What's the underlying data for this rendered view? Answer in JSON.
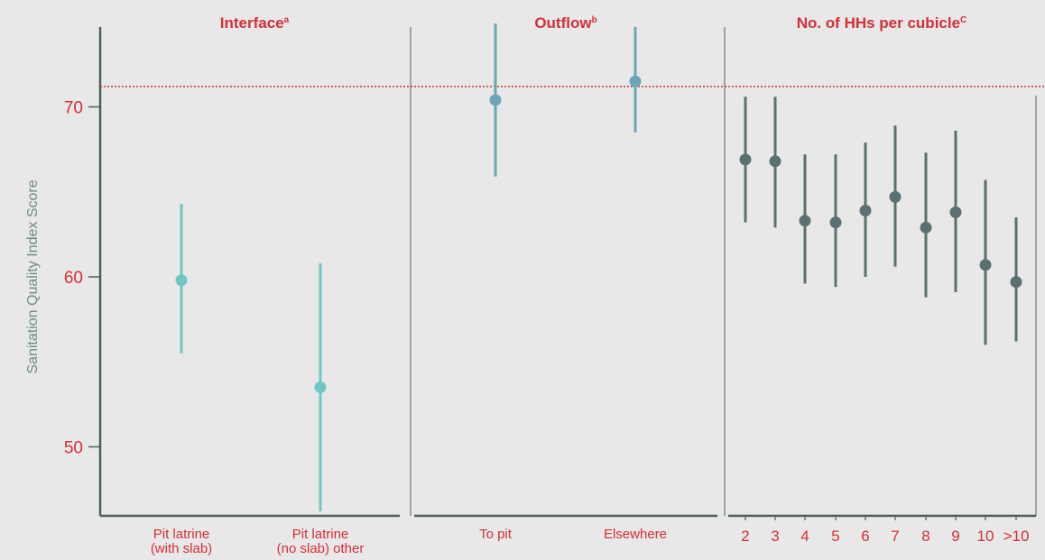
{
  "colors": {
    "background": "#e8e8e8",
    "label_red": "#d62f36",
    "axis": "#4a5e5e",
    "divider": "#6b7c7c",
    "interface_marker": "#6fc7c2",
    "outflow_marker": "#6aa6b5",
    "hh_marker": "#5a7172",
    "reference_line": "#d62f36"
  },
  "chart_data": {
    "type": "scatter",
    "y_axis": {
      "label": "Sanitation Quality Index Score",
      "ticks": [
        50,
        60,
        70
      ],
      "ylim": [
        45,
        76
      ]
    },
    "reference_line": {
      "y": 71.2,
      "style": "dotted"
    },
    "panels": [
      {
        "title": "Interface",
        "title_sup": "a",
        "categories": [
          {
            "lines": [
              "Pit latrine",
              "(with slab)"
            ],
            "y": 59.8,
            "low": 55.5,
            "high": 64.3
          },
          {
            "lines": [
              "Pit latrine",
              "(no slab) other"
            ],
            "y": 53.5,
            "low": 46.2,
            "high": 60.8
          }
        ]
      },
      {
        "title": "Outflow",
        "title_sup": "b",
        "categories": [
          {
            "lines": [
              "To pit"
            ],
            "y": 70.4,
            "low": 65.9,
            "high": 74.9
          },
          {
            "lines": [
              "Elsewhere"
            ],
            "y": 71.5,
            "low": 68.5,
            "high": 74.7
          }
        ]
      },
      {
        "title": "No. of HHs per cubicle",
        "title_sup": "C",
        "categories": [
          {
            "lines": [
              "2"
            ],
            "y": 66.9,
            "low": 63.2,
            "high": 70.6
          },
          {
            "lines": [
              "3"
            ],
            "y": 66.8,
            "low": 62.9,
            "high": 70.6
          },
          {
            "lines": [
              "4"
            ],
            "y": 63.3,
            "low": 59.6,
            "high": 67.2
          },
          {
            "lines": [
              "5"
            ],
            "y": 63.2,
            "low": 59.4,
            "high": 67.2
          },
          {
            "lines": [
              "6"
            ],
            "y": 63.9,
            "low": 60.0,
            "high": 67.9
          },
          {
            "lines": [
              "7"
            ],
            "y": 64.7,
            "low": 60.6,
            "high": 68.9
          },
          {
            "lines": [
              "8"
            ],
            "y": 62.9,
            "low": 58.8,
            "high": 67.3
          },
          {
            "lines": [
              "9"
            ],
            "y": 63.8,
            "low": 59.1,
            "high": 68.6
          },
          {
            "lines": [
              "10"
            ],
            "y": 60.7,
            "low": 56.0,
            "high": 65.7
          },
          {
            "lines": [
              ">10"
            ],
            "y": 59.7,
            "low": 56.2,
            "high": 63.5
          }
        ]
      }
    ]
  }
}
